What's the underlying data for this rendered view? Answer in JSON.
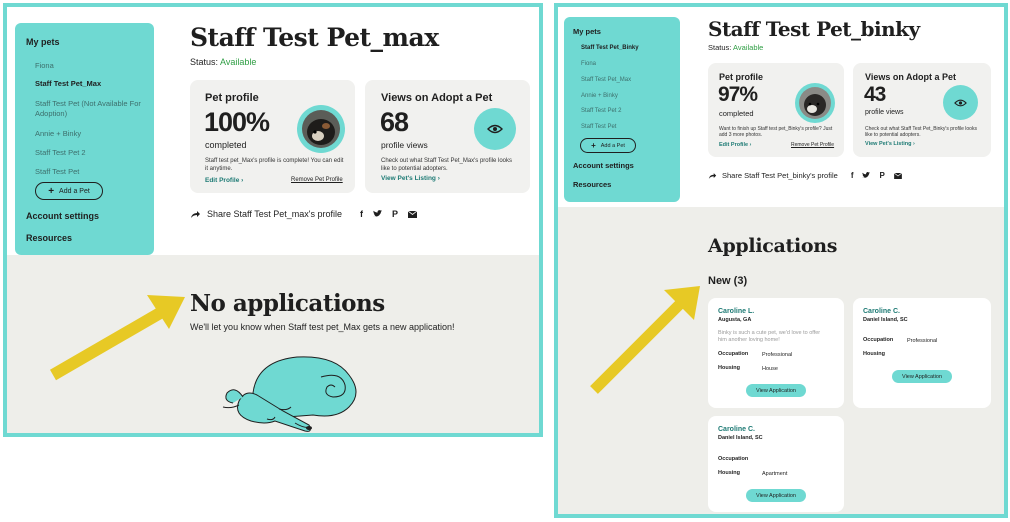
{
  "left": {
    "sidebar": {
      "heading": "My pets",
      "items": [
        {
          "label": "Fiona",
          "active": false
        },
        {
          "label": "Staff Test Pet_Max",
          "active": true
        },
        {
          "label": "Staff Test Pet (Not Available For",
          "active": false
        },
        {
          "label": "Adoption)",
          "active": false
        },
        {
          "label": "Annie + Binky",
          "active": false
        },
        {
          "label": "Staff Test Pet 2",
          "active": false
        },
        {
          "label": "Staff Test Pet",
          "active": false
        }
      ],
      "add_pet": "Add a Pet",
      "account_settings": "Account settings",
      "resources": "Resources"
    },
    "title": "Staff Test Pet_max",
    "status_label": "Status:",
    "status_value": "Available",
    "profile_card": {
      "title": "Pet profile",
      "percent": "100%",
      "sub": "completed",
      "desc": "Staff test pet_Max's profile is complete! You can edit it anytime.",
      "link": "Edit Profile  ›",
      "link2": "Remove Pet Profile"
    },
    "views_card": {
      "title": "Views on Adopt a Pet",
      "count": "68",
      "sub": "profile views",
      "desc": "Check out what Staff Test Pet_Max's profile looks like to potential adopters.",
      "link": "View Pet's Listing  ›"
    },
    "share_text": "Share Staff Test Pet_max's profile",
    "no_apps_title": "No applications",
    "no_apps_desc": "We'll let you know when Staff test pet_Max gets a new application!"
  },
  "right": {
    "sidebar": {
      "heading": "My pets",
      "items": [
        {
          "label": "Staff Test Pet_Binky",
          "active": true
        },
        {
          "label": "Fiona",
          "active": false
        },
        {
          "label": "Staff Test Pet_Max",
          "active": false
        },
        {
          "label": "Annie + Binky",
          "active": false
        },
        {
          "label": "Staff Test Pet 2",
          "active": false
        },
        {
          "label": "Staff Test Pet",
          "active": false
        }
      ],
      "add_pet": "Add a Pet",
      "account_settings": "Account settings",
      "resources": "Resources"
    },
    "title": "Staff Test Pet_binky",
    "status_label": "Status:",
    "status_value": "Available",
    "profile_card": {
      "title": "Pet profile",
      "percent": "97%",
      "sub": "completed",
      "desc": "Want to finish up Staff test pet_Binky's profile? Just add 3 more photos.",
      "link": "Edit Profile  ›",
      "link2": "Remove Pet Profile"
    },
    "views_card": {
      "title": "Views on Adopt a Pet",
      "count": "43",
      "sub": "profile views",
      "desc": "Check out what Staff Test Pet_Binky's profile looks like to potential adopters.",
      "link": "View Pet's Listing  ›"
    },
    "share_text": "Share Staff Test Pet_binky's profile",
    "apps_title": "Applications",
    "new_label": "New (3)",
    "applications": [
      {
        "name": "Caroline L.",
        "location": "Augusta, GA",
        "message": "Binky is such a cute pet, we'd love to offer him another loving home!",
        "occupation_label": "Occupation",
        "occupation": "Professional",
        "housing_label": "Housing",
        "housing": "House",
        "button": "View Application"
      },
      {
        "name": "Caroline C.",
        "location": "Daniel Island, SC",
        "message": "",
        "occupation_label": "Occupation",
        "occupation": "Professional",
        "housing_label": "Housing",
        "housing": "",
        "button": "View Application"
      },
      {
        "name": "Caroline C.",
        "location": "Daniel Island, SC",
        "message": "",
        "occupation_label": "Occupation",
        "occupation": "",
        "housing_label": "Housing",
        "housing": "Apartment",
        "button": "View Application"
      }
    ]
  },
  "colors": {
    "accent": "#6fd9d2",
    "arrow": "#e7c925",
    "status_green": "#2f9e44",
    "link_teal": "#1d7a74",
    "gray_band": "#eeeeea"
  },
  "icons": [
    "share-arrow-icon",
    "facebook-icon",
    "twitter-icon",
    "pinterest-icon",
    "email-icon",
    "eye-icon",
    "plus-icon",
    "pointer-arrow-icon",
    "sleeping-dog-illustration"
  ]
}
